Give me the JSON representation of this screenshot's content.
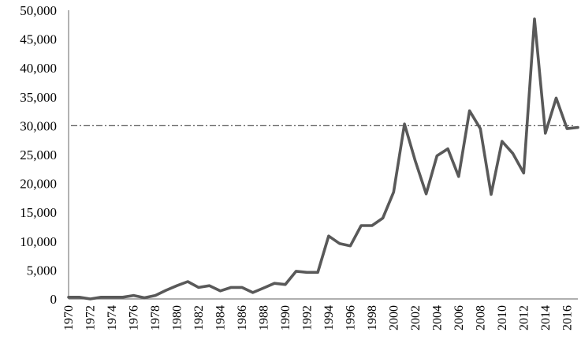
{
  "chart_data": {
    "type": "line",
    "title": "",
    "xlabel": "",
    "ylabel": "",
    "ylim": [
      0,
      50000
    ],
    "xlim": [
      1970,
      2017
    ],
    "grid": false,
    "legend": "none",
    "y_ticks": [
      0,
      5000,
      10000,
      15000,
      20000,
      25000,
      30000,
      35000,
      40000,
      45000,
      50000
    ],
    "y_tick_labels": [
      "0",
      "5,000",
      "10,000",
      "15,000",
      "20,000",
      "25,000",
      "30,000",
      "35,000",
      "40,000",
      "45,000",
      "50,000"
    ],
    "x_ticks": [
      1970,
      1972,
      1974,
      1976,
      1978,
      1980,
      1982,
      1984,
      1986,
      1988,
      1990,
      1992,
      1994,
      1996,
      1998,
      2000,
      2002,
      2004,
      2006,
      2008,
      2010,
      2012,
      2014,
      2016
    ],
    "x_tick_labels": [
      "1970",
      "1972",
      "1974",
      "1976",
      "1978",
      "1980",
      "1982",
      "1984",
      "1986",
      "1988",
      "1990",
      "1992",
      "1994",
      "1996",
      "1998",
      "2000",
      "2002",
      "2004",
      "2006",
      "2008",
      "2010",
      "2012",
      "2014",
      "2016"
    ],
    "reference_line": {
      "y": 30000,
      "style": "dash-dot",
      "color": "#555555"
    },
    "series": [
      {
        "color": "#595959",
        "x": [
          1970,
          1971,
          1972,
          1973,
          1974,
          1975,
          1976,
          1977,
          1978,
          1979,
          1980,
          1981,
          1982,
          1983,
          1984,
          1985,
          1986,
          1987,
          1988,
          1989,
          1990,
          1991,
          1992,
          1993,
          1994,
          1995,
          1996,
          1997,
          1998,
          1999,
          2000,
          2001,
          2002,
          2003,
          2004,
          2005,
          2006,
          2007,
          2008,
          2009,
          2010,
          2011,
          2012,
          2013,
          2014,
          2015,
          2016,
          2017
        ],
        "values": [
          300,
          300,
          0,
          300,
          300,
          300,
          600,
          200,
          600,
          1500,
          2300,
          3000,
          2000,
          2300,
          1400,
          2000,
          2000,
          1100,
          1900,
          2700,
          2500,
          4800,
          4600,
          4600,
          10900,
          9600,
          9200,
          12700,
          12700,
          14000,
          18500,
          30300,
          23900,
          18200,
          24800,
          26000,
          21200,
          32600,
          29500,
          18100,
          27300,
          25200,
          21800,
          48500,
          28700,
          34800,
          29500,
          29700
        ]
      }
    ]
  }
}
